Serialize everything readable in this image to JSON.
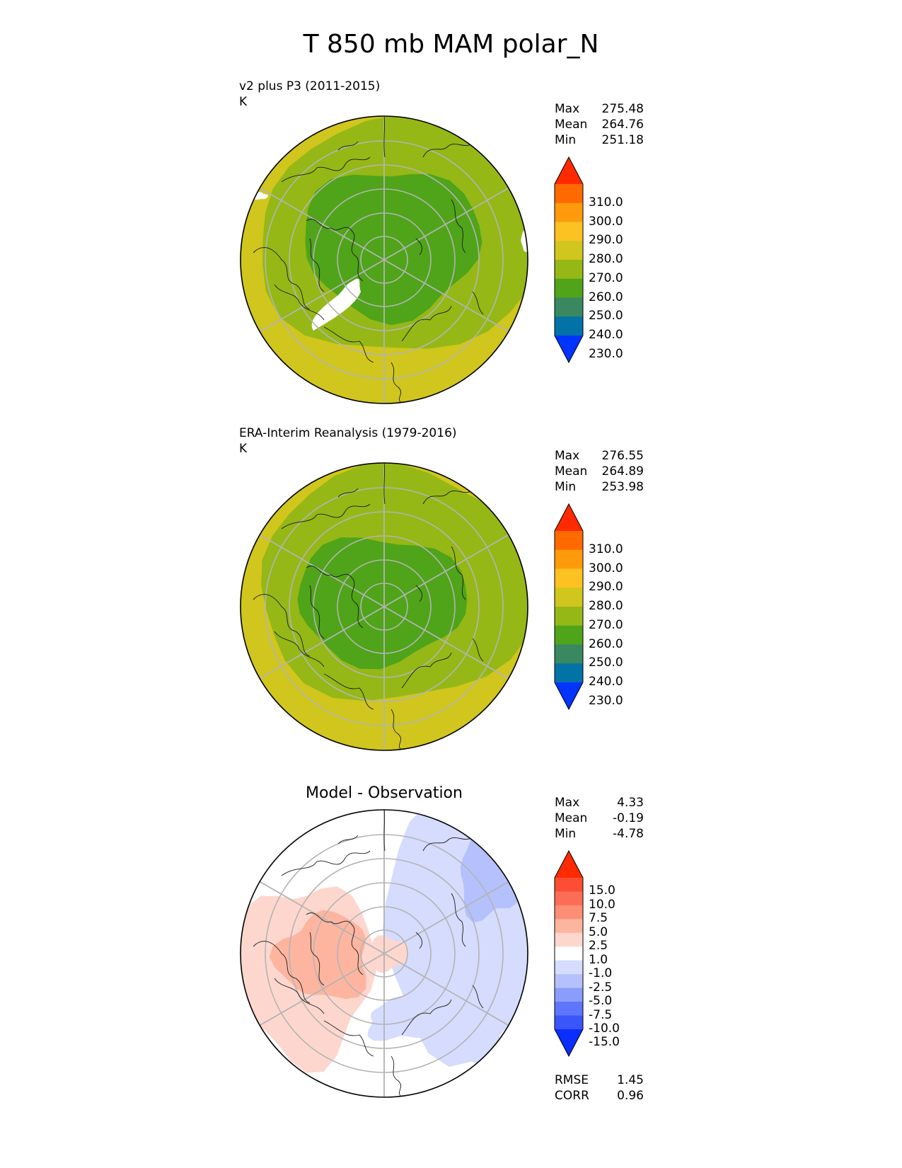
{
  "title": "T 850 mb MAM polar_N",
  "panels": [
    {
      "title": "v2 plus P3 (2011-2015)",
      "units": "K",
      "stats": [
        {
          "label": "Max",
          "value": "275.48"
        },
        {
          "label": "Mean",
          "value": "264.76"
        },
        {
          "label": "Min",
          "value": "251.18"
        }
      ],
      "colorbar": {
        "labels": [
          "310.0",
          "300.0",
          "290.0",
          "280.0",
          "270.0",
          "260.0",
          "250.0",
          "240.0",
          "230.0"
        ],
        "colors": [
          "#ff2a00",
          "#ff6a00",
          "#ff9a0c",
          "#fcc221",
          "#d0c61e",
          "#95b816",
          "#4fa419",
          "#398862",
          "#0372a7",
          "#0234ff"
        ]
      }
    },
    {
      "title": "ERA-Interim Reanalysis (1979-2016)",
      "units": "K",
      "stats": [
        {
          "label": "Max",
          "value": "276.55"
        },
        {
          "label": "Mean",
          "value": "264.89"
        },
        {
          "label": "Min",
          "value": "253.98"
        }
      ],
      "colorbar": {
        "labels": [
          "310.0",
          "300.0",
          "290.0",
          "280.0",
          "270.0",
          "260.0",
          "250.0",
          "240.0",
          "230.0"
        ],
        "colors": [
          "#ff2a00",
          "#ff6a00",
          "#ff9a0c",
          "#fcc221",
          "#d0c61e",
          "#95b816",
          "#4fa419",
          "#398862",
          "#0372a7",
          "#0234ff"
        ]
      }
    },
    {
      "title": "Model - Observation",
      "stats": [
        {
          "label": "Max",
          "value": "4.33"
        },
        {
          "label": "Mean",
          "value": "-0.19"
        },
        {
          "label": "Min",
          "value": "-4.78"
        }
      ],
      "colorbar": {
        "labels": [
          "15.0",
          "10.0",
          "7.5",
          "5.0",
          "2.5",
          "1.0",
          "-1.0",
          "-2.5",
          "-5.0",
          "-7.5",
          "-10.0",
          "-15.0"
        ],
        "colors": [
          "#ff2a00",
          "#fb4e35",
          "#fb6e55",
          "#fc8e75",
          "#fdb5a0",
          "#fdd7ce",
          "#ffffff",
          "#d5dcfd",
          "#b4c1fd",
          "#8b9dfb",
          "#5d76fb",
          "#3a56fb",
          "#0a2efd"
        ]
      },
      "metrics": [
        {
          "label": "RMSE",
          "value": "1.45"
        },
        {
          "label": "CORR",
          "value": "0.96"
        }
      ]
    }
  ]
}
